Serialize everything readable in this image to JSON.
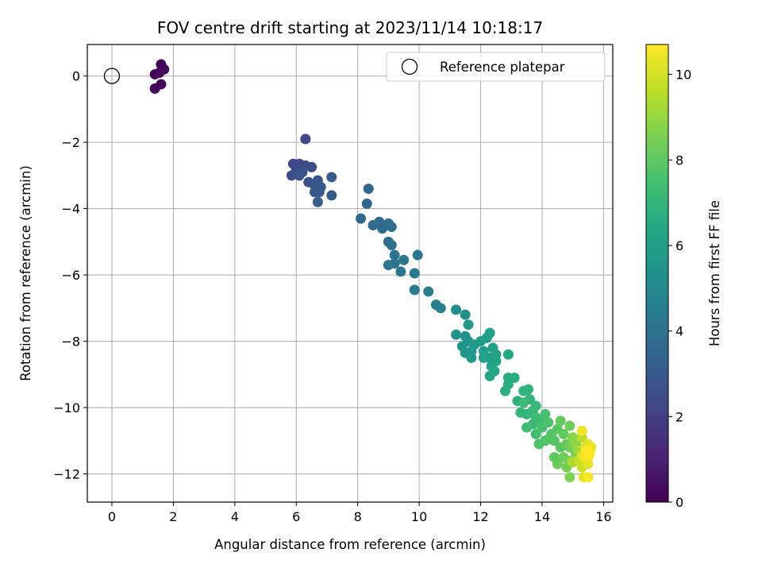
{
  "chart_data": {
    "type": "scatter",
    "title": "FOV centre drift starting at 2023/11/14 10:18:17",
    "xlabel": "Angular distance from reference (arcmin)",
    "ylabel": "Rotation from reference (arcmin)",
    "xlim": [
      -0.8,
      16.3
    ],
    "ylim": [
      -12.85,
      0.95
    ],
    "x_ticks": [
      0,
      2,
      4,
      6,
      8,
      10,
      12,
      14,
      16
    ],
    "y_ticks": [
      0,
      -2,
      -4,
      -6,
      -8,
      -10,
      -12
    ],
    "grid": true,
    "legend": {
      "placement": "top-right",
      "entries": [
        "Reference platepar"
      ]
    },
    "reference_point": {
      "x": 0,
      "y": 0
    },
    "colorbar": {
      "label": "Hours from first FF file",
      "colormap": "viridis",
      "range": [
        0,
        10.7
      ],
      "ticks": [
        0,
        2,
        4,
        6,
        8,
        10
      ]
    },
    "points": [
      [
        1.4,
        0.05,
        0.05
      ],
      [
        1.6,
        0.35,
        0.1
      ],
      [
        1.7,
        0.2,
        0.15
      ],
      [
        1.6,
        -0.25,
        0.2
      ],
      [
        1.4,
        -0.38,
        0.25
      ],
      [
        1.55,
        0.1,
        0.3
      ],
      [
        6.3,
        -1.9,
        2.2
      ],
      [
        5.9,
        -2.65,
        2.3
      ],
      [
        6.0,
        -2.8,
        2.35
      ],
      [
        6.1,
        -2.65,
        2.4
      ],
      [
        6.3,
        -2.7,
        2.45
      ],
      [
        6.5,
        -2.75,
        2.5
      ],
      [
        5.85,
        -3.0,
        2.55
      ],
      [
        6.0,
        -2.95,
        2.6
      ],
      [
        6.2,
        -2.9,
        2.65
      ],
      [
        6.1,
        -3.0,
        2.7
      ],
      [
        6.4,
        -3.2,
        2.75
      ],
      [
        6.6,
        -3.3,
        2.8
      ],
      [
        6.7,
        -3.15,
        2.85
      ],
      [
        6.8,
        -3.35,
        2.9
      ],
      [
        6.6,
        -3.5,
        2.95
      ],
      [
        6.75,
        -3.5,
        3.0
      ],
      [
        7.15,
        -3.05,
        3.05
      ],
      [
        7.15,
        -3.6,
        3.1
      ],
      [
        6.7,
        -3.8,
        3.15
      ],
      [
        8.35,
        -3.4,
        3.5
      ],
      [
        8.3,
        -3.85,
        3.55
      ],
      [
        8.1,
        -4.3,
        3.6
      ],
      [
        8.5,
        -4.5,
        3.7
      ],
      [
        8.7,
        -4.4,
        3.75
      ],
      [
        8.8,
        -4.6,
        3.8
      ],
      [
        9.0,
        -4.45,
        3.85
      ],
      [
        9.1,
        -4.55,
        3.9
      ],
      [
        9.0,
        -5.0,
        3.95
      ],
      [
        9.1,
        -5.1,
        4.0
      ],
      [
        9.2,
        -5.4,
        4.05
      ],
      [
        9.0,
        -5.7,
        4.1
      ],
      [
        9.2,
        -5.65,
        4.15
      ],
      [
        9.5,
        -5.55,
        4.2
      ],
      [
        9.4,
        -5.9,
        4.25
      ],
      [
        9.95,
        -5.4,
        4.3
      ],
      [
        9.85,
        -5.95,
        4.35
      ],
      [
        9.85,
        -6.45,
        4.4
      ],
      [
        10.3,
        -6.5,
        4.5
      ],
      [
        10.55,
        -6.9,
        4.6
      ],
      [
        10.7,
        -7.0,
        4.65
      ],
      [
        11.2,
        -7.05,
        5.2
      ],
      [
        11.5,
        -7.2,
        5.3
      ],
      [
        11.2,
        -7.8,
        5.4
      ],
      [
        11.5,
        -7.85,
        5.45
      ],
      [
        11.4,
        -8.15,
        5.5
      ],
      [
        11.6,
        -8.0,
        5.55
      ],
      [
        11.7,
        -8.3,
        5.6
      ],
      [
        11.5,
        -8.35,
        5.65
      ],
      [
        11.8,
        -8.1,
        5.7
      ],
      [
        11.7,
        -8.5,
        5.75
      ],
      [
        11.6,
        -7.5,
        5.8
      ],
      [
        12.0,
        -8.0,
        5.85
      ],
      [
        12.1,
        -8.3,
        5.9
      ],
      [
        12.2,
        -7.9,
        5.95
      ],
      [
        12.3,
        -8.5,
        6.0
      ],
      [
        12.4,
        -8.2,
        6.05
      ],
      [
        12.1,
        -8.5,
        6.1
      ],
      [
        12.3,
        -7.75,
        6.15
      ],
      [
        12.5,
        -8.4,
        6.2
      ],
      [
        12.35,
        -8.75,
        6.25
      ],
      [
        12.5,
        -8.6,
        6.3
      ],
      [
        12.3,
        -9.05,
        6.35
      ],
      [
        12.45,
        -8.9,
        6.4
      ],
      [
        12.9,
        -8.4,
        6.45
      ],
      [
        12.9,
        -9.1,
        6.6
      ],
      [
        13.1,
        -9.1,
        6.65
      ],
      [
        12.9,
        -9.3,
        6.7
      ],
      [
        12.8,
        -9.5,
        6.75
      ],
      [
        13.2,
        -9.8,
        6.8
      ],
      [
        13.4,
        -9.5,
        6.85
      ],
      [
        13.55,
        -9.45,
        6.9
      ],
      [
        13.6,
        -9.75,
        6.95
      ],
      [
        13.3,
        -10.15,
        7.0
      ],
      [
        13.5,
        -10.2,
        7.05
      ],
      [
        13.7,
        -10.1,
        7.1
      ],
      [
        13.8,
        -9.95,
        7.15
      ],
      [
        13.4,
        -9.85,
        7.2
      ],
      [
        13.7,
        -10.5,
        7.25
      ],
      [
        13.8,
        -10.3,
        7.3
      ],
      [
        13.5,
        -10.6,
        7.35
      ],
      [
        14.0,
        -10.4,
        7.4
      ],
      [
        13.8,
        -10.8,
        7.45
      ],
      [
        14.1,
        -10.2,
        7.5
      ],
      [
        14.0,
        -10.6,
        7.55
      ],
      [
        14.2,
        -10.45,
        7.6
      ],
      [
        13.9,
        -11.1,
        7.65
      ],
      [
        14.1,
        -11.0,
        7.7
      ],
      [
        14.3,
        -10.8,
        7.75
      ],
      [
        14.2,
        -10.95,
        7.8
      ],
      [
        14.4,
        -11.0,
        7.85
      ],
      [
        14.5,
        -10.65,
        7.9
      ],
      [
        14.6,
        -11.2,
        7.95
      ],
      [
        14.4,
        -11.5,
        8.0
      ],
      [
        14.7,
        -10.8,
        8.05
      ],
      [
        14.6,
        -10.4,
        8.1
      ],
      [
        14.8,
        -11.1,
        8.15
      ],
      [
        14.5,
        -11.7,
        8.2
      ],
      [
        14.9,
        -10.55,
        8.25
      ],
      [
        14.7,
        -11.5,
        8.3
      ],
      [
        14.9,
        -11.2,
        8.4
      ],
      [
        14.8,
        -11.8,
        8.45
      ],
      [
        15.1,
        -11.4,
        8.5
      ],
      [
        14.9,
        -12.1,
        8.6
      ],
      [
        14.95,
        -11.6,
        8.7
      ],
      [
        15.0,
        -10.9,
        8.8
      ],
      [
        15.1,
        -11.1,
        8.9
      ],
      [
        15.2,
        -11.3,
        9.2
      ],
      [
        15.0,
        -11.65,
        9.4
      ],
      [
        15.3,
        -10.9,
        9.6
      ],
      [
        15.2,
        -11.6,
        9.8
      ],
      [
        15.3,
        -11.8,
        9.9
      ],
      [
        15.4,
        -11.2,
        10.0
      ],
      [
        15.3,
        -11.45,
        10.1
      ],
      [
        15.5,
        -11.1,
        10.2
      ],
      [
        15.35,
        -12.1,
        10.25
      ],
      [
        15.5,
        -11.7,
        10.3
      ],
      [
        15.4,
        -11.35,
        10.35
      ],
      [
        15.6,
        -11.2,
        10.4
      ],
      [
        15.5,
        -11.5,
        10.45
      ],
      [
        15.3,
        -10.7,
        10.5
      ],
      [
        15.4,
        -11.5,
        10.55
      ],
      [
        15.5,
        -12.1,
        10.6
      ],
      [
        15.45,
        -11.3,
        10.65
      ],
      [
        15.55,
        -11.4,
        10.7
      ]
    ]
  }
}
